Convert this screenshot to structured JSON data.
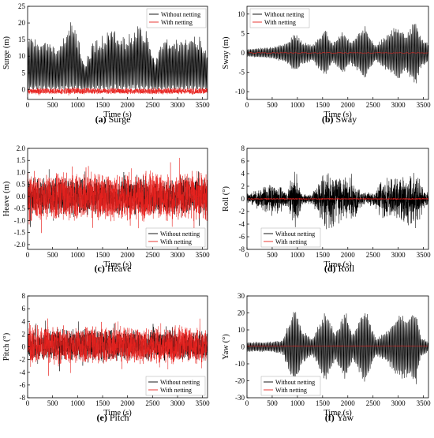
{
  "legend_labels": [
    "Without netting",
    "With netting"
  ],
  "colors": {
    "without_netting": "#000000",
    "with_netting": "#e8231f"
  },
  "chart_data": [
    {
      "type": "line",
      "key": "surge",
      "caption_letter": "(a)",
      "caption_text": "Surge",
      "xlabel": "Time (s)",
      "ylabel": "Surge (m)",
      "xlim": [
        0,
        3600
      ],
      "ylim": [
        -3,
        25
      ],
      "xticks": [
        0,
        500,
        1000,
        1500,
        2000,
        2500,
        3000,
        3500
      ],
      "yticks": [
        0,
        5,
        10,
        15,
        20,
        25
      ],
      "ytick_labels": [
        "0",
        "5",
        "10",
        "15",
        "20",
        "25"
      ],
      "legend_position": "top-right",
      "series": [
        {
          "name": "Without netting",
          "color": "#000000",
          "style": "oscillating-groups",
          "baseline": 5,
          "envelope": [
            [
              0,
              16
            ],
            [
              200,
              16
            ],
            [
              400,
              15
            ],
            [
              600,
              13
            ],
            [
              750,
              17
            ],
            [
              850,
              20.5
            ],
            [
              950,
              19
            ],
            [
              1050,
              14
            ],
            [
              1150,
              8
            ],
            [
              1300,
              15
            ],
            [
              1500,
              16.5
            ],
            [
              1700,
              19
            ],
            [
              1900,
              16
            ],
            [
              2100,
              18
            ],
            [
              2250,
              20.5
            ],
            [
              2400,
              17
            ],
            [
              2550,
              9
            ],
            [
              2700,
              15
            ],
            [
              2850,
              16.5
            ],
            [
              3050,
              15
            ],
            [
              3250,
              17
            ],
            [
              3450,
              16
            ],
            [
              3600,
              12
            ]
          ],
          "low_envelope": [
            [
              0,
              0
            ],
            [
              3600,
              0
            ]
          ]
        },
        {
          "name": "With netting",
          "color": "#e8231f",
          "style": "noise",
          "baseline": -0.5,
          "amplitude": 1.0
        }
      ]
    },
    {
      "type": "line",
      "key": "sway",
      "caption_letter": "(b)",
      "caption_text": "Sway",
      "xlabel": "Time (s)",
      "ylabel": "Sway (m)",
      "xlim": [
        0,
        3600
      ],
      "ylim": [
        -12,
        12
      ],
      "xticks": [
        0,
        500,
        1000,
        1500,
        2000,
        2500,
        3000,
        3500
      ],
      "yticks": [
        -10,
        -5,
        0,
        5,
        10
      ],
      "ytick_labels": [
        "-10",
        "-5",
        "0",
        "5",
        "10"
      ],
      "legend_position": "top-left",
      "series": [
        {
          "name": "Without netting",
          "color": "#000000",
          "style": "groups-symmetric",
          "envelope": [
            [
              0,
              1
            ],
            [
              500,
              1.5
            ],
            [
              800,
              3
            ],
            [
              950,
              5.5
            ],
            [
              1100,
              3
            ],
            [
              1300,
              2
            ],
            [
              1550,
              6.5
            ],
            [
              1700,
              2.5
            ],
            [
              1900,
              6
            ],
            [
              2050,
              3
            ],
            [
              2350,
              7
            ],
            [
              2550,
              2
            ],
            [
              2800,
              5
            ],
            [
              3000,
              7.5
            ],
            [
              3150,
              5
            ],
            [
              3350,
              9
            ],
            [
              3450,
              4
            ],
            [
              3600,
              2.5
            ]
          ]
        },
        {
          "name": "With netting",
          "color": "#e8231f",
          "style": "flat",
          "baseline": 0
        }
      ]
    },
    {
      "type": "line",
      "key": "heave",
      "caption_letter": "(c)",
      "caption_text": "Heave",
      "xlabel": "Time (s)",
      "ylabel": "Heave (m)",
      "xlim": [
        0,
        3600
      ],
      "ylim": [
        -2.2,
        2.0
      ],
      "xticks": [
        0,
        500,
        1000,
        1500,
        2000,
        2500,
        3000,
        3500
      ],
      "yticks": [
        -2.0,
        -1.5,
        -1.0,
        -0.5,
        0.0,
        0.5,
        1.0,
        1.5,
        2.0
      ],
      "ytick_labels": [
        "-2.0",
        "-1.5",
        "-1.0",
        "-0.5",
        "0.0",
        "0.5",
        "1.0",
        "1.5",
        "2.0"
      ],
      "legend_position": "bottom-right",
      "series": [
        {
          "name": "Without netting",
          "color": "#000000",
          "style": "noise",
          "baseline": 0,
          "amplitude": 0.8
        },
        {
          "name": "With netting",
          "color": "#e8231f",
          "style": "noise",
          "baseline": 0,
          "amplitude": 1.1
        }
      ]
    },
    {
      "type": "line",
      "key": "roll",
      "caption_letter": "(d)",
      "caption_text": "Roll",
      "xlabel": "Time (s)",
      "ylabel": "Roll (°)",
      "xlim": [
        0,
        3600
      ],
      "ylim": [
        -8,
        8
      ],
      "xticks": [
        0,
        500,
        1000,
        1500,
        2000,
        2500,
        3000,
        3500
      ],
      "yticks": [
        -8,
        -6,
        -4,
        -2,
        0,
        2,
        4,
        6,
        8
      ],
      "ytick_labels": [
        "-8",
        "-6",
        "-4",
        "-2",
        "0",
        "2",
        "4",
        "6",
        "8"
      ],
      "legend_position": "bottom-left",
      "series": [
        {
          "name": "Without netting",
          "color": "#000000",
          "style": "noise-symmetric",
          "envelope": [
            [
              0,
              1
            ],
            [
              300,
              2
            ],
            [
              550,
              3
            ],
            [
              800,
              1.5
            ],
            [
              950,
              5.5
            ],
            [
              1100,
              1
            ],
            [
              1300,
              1
            ],
            [
              1500,
              4.5
            ],
            [
              1750,
              6
            ],
            [
              1900,
              4
            ],
            [
              2050,
              5
            ],
            [
              2250,
              1.5
            ],
            [
              2500,
              1
            ],
            [
              2700,
              4
            ],
            [
              2900,
              3.5
            ],
            [
              3100,
              4
            ],
            [
              3300,
              6
            ],
            [
              3500,
              2
            ],
            [
              3600,
              1
            ]
          ]
        },
        {
          "name": "With netting",
          "color": "#e8231f",
          "style": "noise",
          "baseline": 0,
          "amplitude": 0.12
        }
      ]
    },
    {
      "type": "line",
      "key": "pitch",
      "caption_letter": "(e)",
      "caption_text": "Pitch",
      "xlabel": "Time (s)",
      "ylabel": "Pitch (°)",
      "xlim": [
        0,
        3600
      ],
      "ylim": [
        -8,
        8
      ],
      "xticks": [
        0,
        500,
        1000,
        1500,
        2000,
        2500,
        3000,
        3500
      ],
      "yticks": [
        -8,
        -6,
        -4,
        -2,
        0,
        2,
        4,
        6,
        8
      ],
      "ytick_labels": [
        "-8",
        "-6",
        "-4",
        "-2",
        "0",
        "2",
        "4",
        "6",
        "8"
      ],
      "legend_position": "bottom-right",
      "series": [
        {
          "name": "Without netting",
          "color": "#000000",
          "style": "noise",
          "baseline": 0.3,
          "amplitude": 2.6
        },
        {
          "name": "With netting",
          "color": "#e8231f",
          "style": "noise",
          "baseline": 0.3,
          "amplitude": 3.2
        }
      ]
    },
    {
      "type": "line",
      "key": "yaw",
      "caption_letter": "(f)",
      "caption_text": "Yaw",
      "xlabel": "Time (s)",
      "ylabel": "Yaw (°)",
      "xlim": [
        0,
        3600
      ],
      "ylim": [
        -30,
        30
      ],
      "xticks": [
        0,
        500,
        1000,
        1500,
        2000,
        2500,
        3000,
        3500
      ],
      "yticks": [
        -30,
        -20,
        -10,
        0,
        10,
        20,
        30
      ],
      "ytick_labels": [
        "-30",
        "-20",
        "-10",
        "0",
        "10",
        "20",
        "30"
      ],
      "legend_position": "bottom-left",
      "series": [
        {
          "name": "Without netting",
          "color": "#000000",
          "style": "groups-symmetric",
          "envelope": [
            [
              0,
              3
            ],
            [
              400,
              3
            ],
            [
              700,
              4
            ],
            [
              950,
              24
            ],
            [
              1100,
              10
            ],
            [
              1300,
              5
            ],
            [
              1550,
              22
            ],
            [
              1750,
              8
            ],
            [
              1950,
              22
            ],
            [
              2100,
              8
            ],
            [
              2350,
              24
            ],
            [
              2550,
              5
            ],
            [
              2800,
              10
            ],
            [
              3000,
              20
            ],
            [
              3200,
              18
            ],
            [
              3350,
              24
            ],
            [
              3450,
              6
            ],
            [
              3600,
              3
            ]
          ]
        },
        {
          "name": "With netting",
          "color": "#e8231f",
          "style": "flat",
          "baseline": 0.5
        }
      ]
    }
  ]
}
